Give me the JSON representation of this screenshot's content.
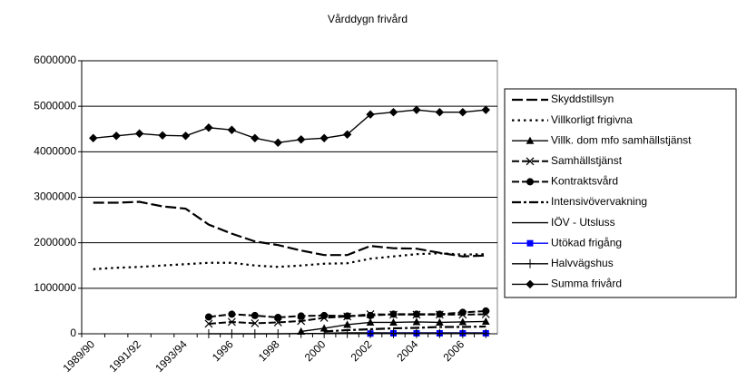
{
  "chart_data": {
    "type": "line",
    "title": "Vårddygn frivård",
    "categories": [
      "1989/90",
      null,
      "1991/92",
      null,
      "1993/94",
      null,
      "1996",
      null,
      "1998",
      null,
      "2000",
      null,
      "2002",
      null,
      "2004",
      null,
      "2006",
      null
    ],
    "ylim": [
      0,
      6000000
    ],
    "yticks": [
      0,
      1000000,
      2000000,
      3000000,
      4000000,
      5000000,
      6000000
    ],
    "grid": true,
    "legend": "right",
    "series": [
      {
        "name": "Skyddstillsyn",
        "color": "#000000",
        "dash": "long-dash",
        "marker": "none",
        "values": [
          2880000,
          2880000,
          2900000,
          2800000,
          2750000,
          2400000,
          2200000,
          2030000,
          1950000,
          1830000,
          1730000,
          1730000,
          1930000,
          1880000,
          1870000,
          1780000,
          1700000,
          1720000
        ]
      },
      {
        "name": "Villkorligt frigivna",
        "color": "#000000",
        "dash": "dotted",
        "marker": "none",
        "values": [
          1420000,
          1450000,
          1470000,
          1500000,
          1530000,
          1560000,
          1560000,
          1500000,
          1470000,
          1500000,
          1540000,
          1550000,
          1650000,
          1700000,
          1750000,
          1770000,
          1740000,
          1750000
        ]
      },
      {
        "name": "Villk. dom mfo samhällstjänst",
        "color": "#000000",
        "dash": "solid",
        "marker": "triangle",
        "values": [
          null,
          null,
          null,
          null,
          null,
          null,
          null,
          null,
          null,
          50000,
          120000,
          200000,
          250000,
          250000,
          260000,
          250000,
          260000,
          270000
        ]
      },
      {
        "name": "Samhällstjänst",
        "color": "#000000",
        "dash": "dash",
        "marker": "x",
        "values": [
          null,
          null,
          null,
          null,
          null,
          220000,
          260000,
          230000,
          250000,
          280000,
          350000,
          380000,
          430000,
          420000,
          420000,
          420000,
          420000,
          430000
        ]
      },
      {
        "name": "Kontraktsvård",
        "color": "#000000",
        "dash": "dash",
        "marker": "circle",
        "values": [
          null,
          null,
          null,
          null,
          null,
          370000,
          430000,
          400000,
          360000,
          390000,
          400000,
          390000,
          400000,
          430000,
          430000,
          430000,
          470000,
          500000
        ]
      },
      {
        "name": "Intensivövervakning",
        "color": "#000000",
        "dash": "dash-dot",
        "marker": "none",
        "values": [
          null,
          null,
          null,
          null,
          null,
          null,
          null,
          null,
          null,
          null,
          50000,
          80000,
          100000,
          120000,
          130000,
          150000,
          150000,
          160000
        ]
      },
      {
        "name": "IÖV - Utsluss",
        "color": "#000000",
        "dash": "solid",
        "marker": "none",
        "values": [
          null,
          null,
          null,
          null,
          null,
          null,
          null,
          null,
          null,
          null,
          10000,
          20000,
          20000,
          20000,
          20000,
          20000,
          20000,
          20000
        ]
      },
      {
        "name": "Utökad frigång",
        "color": "#0000ff",
        "dash": "solid",
        "marker": "square",
        "values": [
          null,
          null,
          null,
          null,
          null,
          null,
          null,
          null,
          null,
          null,
          null,
          null,
          5000,
          10000,
          10000,
          10000,
          10000,
          10000
        ]
      },
      {
        "name": "Halvvägshus",
        "color": "#000000",
        "dash": "solid",
        "marker": "plus",
        "values": [
          null,
          null,
          null,
          null,
          null,
          0,
          0,
          0,
          0,
          5000,
          5000,
          5000,
          5000,
          5000,
          5000,
          5000,
          5000,
          5000
        ]
      },
      {
        "name": "Summa frivård",
        "color": "#000000",
        "dash": "solid",
        "marker": "diamond",
        "values": [
          4300000,
          4350000,
          4400000,
          4360000,
          4350000,
          4530000,
          4480000,
          4300000,
          4200000,
          4270000,
          4300000,
          4380000,
          4820000,
          4870000,
          4920000,
          4870000,
          4870000,
          4920000
        ]
      }
    ]
  }
}
